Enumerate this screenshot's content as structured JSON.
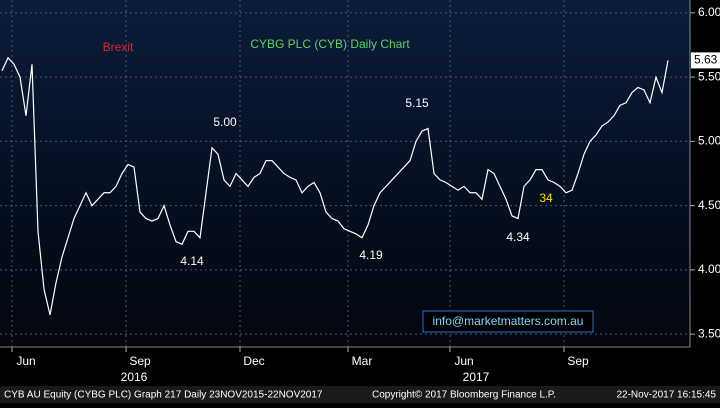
{
  "chart_data": {
    "type": "line",
    "title": "CYBG PLC (CYB) Daily Chart",
    "annotations": [
      "Brexit",
      "5.00",
      "4.14",
      "4.19",
      "5.15",
      "4.34",
      "34"
    ],
    "email": "info@marketmatters.com.au",
    "categories": [
      null,
      null,
      null,
      null,
      "Jun",
      null,
      null,
      null,
      null,
      null,
      null,
      null,
      null,
      null,
      null,
      null,
      null,
      null,
      null,
      null,
      null,
      null,
      null,
      "Sep",
      null,
      null,
      null,
      null,
      null,
      null,
      null,
      null,
      null,
      null,
      null,
      null,
      null,
      null,
      null,
      null,
      null,
      null,
      "Dec",
      null,
      null,
      null,
      null,
      null,
      null,
      null,
      null,
      null,
      null,
      null,
      null,
      null,
      null,
      null,
      null,
      null,
      "Mar",
      null,
      null,
      null,
      null,
      null,
      null,
      null,
      null,
      null,
      null,
      null,
      null,
      null,
      null,
      null,
      null,
      "Jun",
      null,
      null,
      null,
      null,
      null,
      null,
      null,
      null,
      null,
      null,
      null,
      null,
      null,
      null,
      null,
      null,
      null,
      null,
      "Sep",
      null,
      null,
      null,
      null,
      null,
      null,
      null,
      null,
      null,
      null,
      null,
      null,
      null,
      null,
      null
    ],
    "years": [
      null,
      null,
      null,
      null,
      null,
      null,
      null,
      null,
      null,
      null,
      null,
      null,
      null,
      null,
      null,
      null,
      null,
      null,
      null,
      null,
      null,
      null,
      "2016",
      null,
      null,
      null,
      null,
      null,
      null,
      null,
      null,
      null,
      null,
      null,
      null,
      null,
      null,
      null,
      null,
      null,
      null,
      null,
      null,
      null,
      null,
      null,
      null,
      null,
      null,
      null,
      null,
      null,
      null,
      null,
      null,
      null,
      null,
      null,
      null,
      null,
      null,
      null,
      null,
      null,
      null,
      null,
      null,
      null,
      null,
      null,
      null,
      null,
      null,
      null,
      null,
      null,
      null,
      null,
      null,
      "2017",
      null,
      null,
      null,
      null,
      null,
      null,
      null,
      null,
      null,
      null,
      null,
      null,
      null,
      null,
      null,
      null,
      null,
      null,
      null,
      null,
      null,
      null,
      null,
      null,
      null,
      null,
      null,
      null,
      null,
      null,
      null,
      null
    ],
    "values": [
      5.55,
      5.65,
      5.6,
      5.5,
      5.2,
      5.6,
      4.3,
      3.85,
      3.65,
      3.9,
      4.1,
      4.25,
      4.4,
      4.5,
      4.6,
      4.5,
      4.55,
      4.6,
      4.6,
      4.65,
      4.75,
      4.82,
      4.8,
      4.45,
      4.4,
      4.38,
      4.4,
      4.5,
      4.35,
      4.22,
      4.2,
      4.3,
      4.3,
      4.25,
      4.6,
      4.95,
      4.9,
      4.7,
      4.65,
      4.75,
      4.7,
      4.65,
      4.72,
      4.75,
      4.85,
      4.85,
      4.8,
      4.75,
      4.72,
      4.7,
      4.6,
      4.65,
      4.68,
      4.6,
      4.45,
      4.4,
      4.38,
      4.32,
      4.3,
      4.28,
      4.25,
      4.35,
      4.5,
      4.6,
      4.65,
      4.7,
      4.75,
      4.8,
      4.85,
      5.0,
      5.08,
      5.1,
      4.75,
      4.7,
      4.68,
      4.65,
      4.62,
      4.65,
      4.6,
      4.6,
      4.55,
      4.78,
      4.75,
      4.65,
      4.55,
      4.42,
      4.4,
      4.65,
      4.7,
      4.78,
      4.78,
      4.7,
      4.68,
      4.65,
      4.6,
      4.62,
      4.75,
      4.9,
      5.0,
      5.05,
      5.12,
      5.15,
      5.2,
      5.28,
      5.3,
      5.38,
      5.42,
      5.4,
      5.3,
      5.5,
      5.38,
      5.63
    ],
    "color": "#ffffff",
    "ylim": [
      3.4,
      6.1
    ],
    "yticks": [
      {
        "value": 3.5,
        "label": "3.50"
      },
      {
        "value": 4,
        "label": "4.00"
      },
      {
        "value": 4.5,
        "label": "4.50"
      },
      {
        "value": 5,
        "label": "5.00"
      },
      {
        "value": 5.5,
        "label": "5.50"
      },
      {
        "value": 6,
        "label": "6.00"
      }
    ],
    "grid": true
  },
  "footer": [
    "CYB AU Equity (CYBG PLC) Graph 217  Daily 23NOV2015-22NOV2017",
    "Copyright© 2017 Bloomberg Finance L.P.",
    "22-Nov-2017 16:15:45"
  ]
}
